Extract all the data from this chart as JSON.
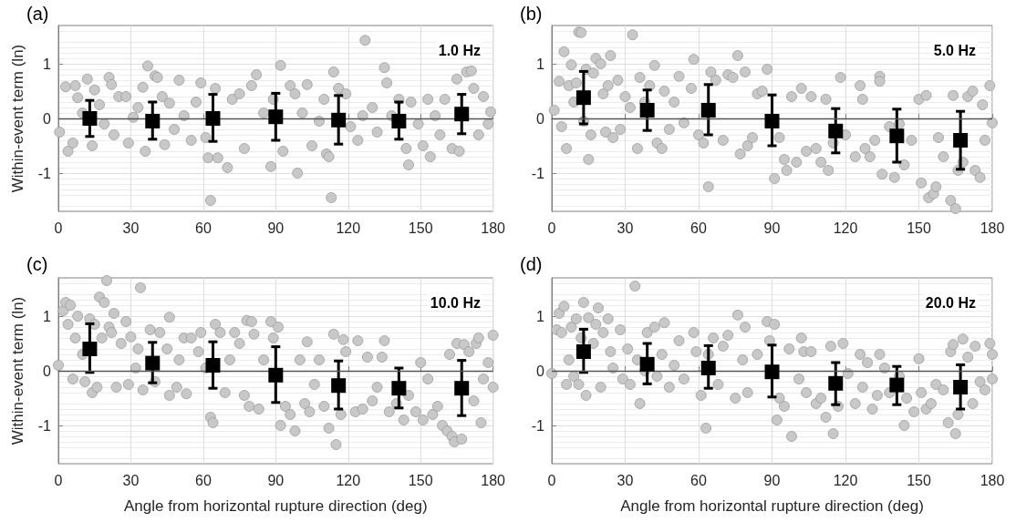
{
  "chart_data": [
    {
      "type": "scatter",
      "title": "(a)",
      "annotations": [
        "1.0 Hz"
      ],
      "ylabel": "Within-event term (ln)",
      "xlim": [
        0,
        180
      ],
      "xticks": [
        0,
        30,
        60,
        90,
        120,
        150,
        180
      ],
      "ylim": [
        -1.7,
        1.7
      ],
      "yticks": [
        -1,
        0,
        1
      ],
      "grid": true,
      "ref_lines": [
        {
          "axis": "y",
          "value": 0,
          "color": "#555555"
        }
      ],
      "series": [
        {
          "color": "#c8c8c8",
          "marker": "circle",
          "x": [
            0.5,
            3,
            4,
            6,
            7,
            8,
            10,
            12,
            14,
            15,
            17,
            19,
            21,
            22,
            23,
            25,
            28,
            29,
            31,
            33,
            35,
            36,
            37,
            40,
            41,
            43,
            44,
            46,
            48,
            50,
            52,
            55,
            57,
            59,
            61,
            62,
            63,
            65,
            66,
            70,
            72,
            75,
            77,
            80,
            82,
            85,
            88,
            89,
            92,
            93,
            96,
            98,
            99,
            101,
            103,
            105,
            108,
            110,
            111,
            112,
            113,
            114,
            116,
            119,
            121,
            124,
            126,
            127,
            130,
            132,
            135,
            136,
            138,
            141,
            144,
            145,
            146,
            149,
            151,
            153,
            154,
            156,
            158,
            160,
            163,
            165,
            166,
            169,
            171,
            172,
            174,
            176,
            178,
            179
          ],
          "values": [
            -0.25,
            0.58,
            -0.6,
            -0.45,
            0.6,
            0.38,
            0.1,
            0.72,
            -0.5,
            0.52,
            0.25,
            -0.1,
            0.75,
            0.62,
            -0.3,
            0.4,
            0.4,
            -0.45,
            0.02,
            0.2,
            0.57,
            -0.6,
            0.96,
            0.78,
            0.75,
            0.4,
            -0.48,
            0.28,
            -0.2,
            0.7,
            0.05,
            -0.4,
            0.3,
            0.65,
            -0.35,
            -0.72,
            -1.5,
            0.55,
            -0.72,
            -0.9,
            0.35,
            0.45,
            -0.55,
            0.6,
            0.8,
            0.1,
            -0.88,
            0.35,
            0.97,
            -0.6,
            0.6,
            0.45,
            -1.0,
            0.1,
            0.62,
            -0.5,
            -0.05,
            0.35,
            -0.65,
            -0.7,
            -1.45,
            0.85,
            0.55,
            0.45,
            -0.15,
            -0.4,
            0.05,
            1.43,
            0.2,
            -0.25,
            0.93,
            0.65,
            0.05,
            0.35,
            -0.55,
            -0.85,
            0.3,
            -0.1,
            -0.5,
            0.35,
            -0.7,
            0.05,
            -0.3,
            0.35,
            -0.55,
            0.72,
            -0.6,
            0.85,
            0.87,
            0.55,
            -0.3,
            0.4,
            -0.1,
            0.12
          ]
        },
        {
          "color": "#000000",
          "marker": "square",
          "x": [
            13,
            39,
            64,
            90,
            116,
            141,
            167
          ],
          "values": [
            0.0,
            -0.05,
            0.0,
            0.03,
            -0.03,
            -0.05,
            0.08
          ],
          "errors": [
            [
              -0.33,
              0.33
            ],
            [
              -0.38,
              0.3
            ],
            [
              -0.42,
              0.44
            ],
            [
              -0.4,
              0.46
            ],
            [
              -0.47,
              0.42
            ],
            [
              -0.38,
              0.3
            ],
            [
              -0.28,
              0.44
            ]
          ]
        }
      ]
    },
    {
      "type": "scatter",
      "title": "(b)",
      "annotations": [
        "5.0 Hz"
      ],
      "xlim": [
        0,
        180
      ],
      "xticks": [
        0,
        30,
        60,
        90,
        120,
        150,
        180
      ],
      "ylim": [
        -1.7,
        1.7
      ],
      "yticks": [
        -1,
        0,
        1
      ],
      "grid": true,
      "ref_lines": [
        {
          "axis": "y",
          "value": 0,
          "color": "#555555"
        }
      ],
      "series": [
        {
          "color": "#c8c8c8",
          "marker": "circle",
          "x": [
            1,
            3,
            4,
            5,
            6,
            7,
            8,
            9,
            10,
            11,
            12,
            13,
            14,
            15,
            16,
            17,
            18,
            20,
            21,
            22,
            23,
            24,
            25,
            27,
            28,
            30,
            32,
            33,
            35,
            36,
            38,
            40,
            42,
            43,
            45,
            46,
            48,
            50,
            52,
            54,
            57,
            58,
            60,
            62,
            64,
            65,
            67,
            70,
            72,
            74,
            76,
            77,
            79,
            80,
            82,
            84,
            86,
            88,
            91,
            93,
            95,
            96,
            98,
            100,
            102,
            104,
            106,
            108,
            110,
            112,
            113,
            115,
            118,
            120,
            124,
            126,
            127,
            128,
            130,
            132,
            134,
            134,
            135,
            138,
            140,
            142,
            144,
            147,
            150,
            151,
            153,
            154,
            156,
            157,
            158,
            160,
            163,
            164,
            165,
            166,
            168,
            170,
            172,
            173,
            175,
            176,
            177,
            179,
            180
          ],
          "values": [
            0.15,
            0.68,
            -0.15,
            1.22,
            -0.55,
            0.6,
            0.98,
            0.3,
            0.65,
            1.58,
            1.57,
            -0.05,
            0.9,
            -0.75,
            -0.3,
            0.83,
            1.1,
            1.0,
            0.45,
            -0.25,
            0.6,
            1.15,
            -0.35,
            0.7,
            -0.2,
            0.4,
            0.2,
            1.53,
            -0.55,
            0.75,
            0.3,
            0.6,
            0.97,
            -0.45,
            -0.55,
            0.5,
            -0.2,
            0.3,
            0.77,
            -0.08,
            0.55,
            1.08,
            -0.3,
            -0.45,
            -1.25,
            0.85,
            0.7,
            -0.4,
            0.8,
            0.75,
            1.15,
            -0.65,
            0.85,
            -0.5,
            -0.35,
            0.45,
            0.5,
            0.9,
            -1.1,
            -0.35,
            -0.75,
            -0.95,
            0.4,
            -0.8,
            0.55,
            -0.6,
            0.4,
            -0.55,
            -0.8,
            0.35,
            -0.95,
            -0.45,
            0.75,
            -0.3,
            -0.7,
            0.6,
            0.35,
            -0.55,
            -0.7,
            -0.4,
            0.77,
            0.68,
            -1.02,
            -0.15,
            -1.08,
            -0.1,
            -0.85,
            -0.4,
            0.35,
            -1.18,
            0.42,
            -1.45,
            -1.38,
            -1.25,
            -0.35,
            -0.7,
            -1.5,
            0.42,
            -1.65,
            -0.95,
            -0.8,
            0.4,
            0.5,
            -0.95,
            -1.08,
            0.25,
            -0.4,
            0.6,
            -0.08
          ]
        },
        {
          "color": "#000000",
          "marker": "square",
          "x": [
            13,
            39,
            64,
            90,
            116,
            141,
            167
          ],
          "values": [
            0.38,
            0.15,
            0.15,
            -0.05,
            -0.23,
            -0.32,
            -0.4
          ],
          "errors": [
            [
              -0.1,
              0.86
            ],
            [
              -0.22,
              0.52
            ],
            [
              -0.3,
              0.62
            ],
            [
              -0.5,
              0.43
            ],
            [
              -0.63,
              0.18
            ],
            [
              -0.8,
              0.17
            ],
            [
              -0.93,
              0.13
            ]
          ]
        }
      ]
    },
    {
      "type": "scatter",
      "title": "(c)",
      "annotations": [
        "10.0 Hz"
      ],
      "xlabel": "Angle from horizontal rupture direction (deg)",
      "ylabel": "Within-event term (ln)",
      "xlim": [
        0,
        180
      ],
      "xticks": [
        0,
        30,
        60,
        90,
        120,
        150,
        180
      ],
      "ylim": [
        -1.7,
        1.7
      ],
      "yticks": [
        -1,
        0,
        1
      ],
      "grid": true,
      "ref_lines": [
        {
          "axis": "y",
          "value": 0,
          "color": "#555555"
        }
      ],
      "series": [
        {
          "color": "#c8c8c8",
          "marker": "circle",
          "x": [
            0,
            2,
            3,
            4,
            5,
            6,
            7,
            8,
            10,
            11,
            13,
            14,
            15,
            16,
            17,
            18,
            19,
            20,
            21,
            22,
            23,
            24,
            26,
            28,
            29,
            30,
            32,
            33,
            34,
            35,
            38,
            40,
            42,
            45,
            46,
            46,
            49,
            50,
            52,
            53,
            55,
            58,
            59,
            61,
            63,
            64,
            65,
            67,
            69,
            71,
            73,
            75,
            77,
            78,
            79,
            80,
            81,
            83,
            85,
            88,
            89,
            91,
            92,
            94,
            96,
            98,
            100,
            102,
            103,
            104,
            106,
            108,
            110,
            112,
            114,
            115,
            117,
            118,
            119,
            123,
            124,
            126,
            128,
            130,
            132,
            134,
            135,
            137,
            140,
            143,
            145,
            148,
            150,
            151,
            153,
            155,
            157,
            159,
            161,
            162,
            163,
            164,
            165,
            167,
            168,
            170,
            172,
            173,
            174,
            175,
            176,
            178,
            180,
            180
          ],
          "values": [
            0.1,
            1.1,
            1.25,
            0.85,
            1.2,
            -0.15,
            0.6,
            1.0,
            0.3,
            -0.2,
            0.95,
            -0.4,
            0.85,
            -0.3,
            1.35,
            0.6,
            1.25,
            1.65,
            0.8,
            0.7,
            1.05,
            -0.3,
            0.5,
            0.9,
            -0.25,
            0.62,
            0.05,
            0.4,
            1.52,
            -0.35,
            0.75,
            -0.2,
            0.7,
            0.4,
            -0.45,
            0.98,
            -0.3,
            0.2,
            0.6,
            -0.42,
            0.6,
            0.35,
            0.7,
            0.05,
            -0.85,
            -0.95,
            0.85,
            0.7,
            -0.4,
            0.2,
            0.7,
            0.5,
            -0.45,
            0.92,
            -0.65,
            0.9,
            0.67,
            -0.7,
            0.2,
            0.9,
            0.6,
            0.8,
            -1.0,
            -0.65,
            -0.8,
            -1.1,
            0.2,
            -0.6,
            0.53,
            -0.75,
            -0.25,
            0.2,
            -0.65,
            -1.05,
            0.67,
            -1.35,
            -0.8,
            0.57,
            0.35,
            -0.75,
            0.55,
            -0.7,
            0.25,
            -0.55,
            -0.3,
            0.25,
            0.55,
            -0.75,
            -0.6,
            -0.9,
            -0.45,
            -0.75,
            0.15,
            -0.9,
            -0.15,
            -0.8,
            -0.65,
            -1.0,
            -1.1,
            0.3,
            -1.2,
            -1.3,
            0.5,
            -1.25,
            0.48,
            0.35,
            -0.55,
            0.5,
            0.6,
            -0.95,
            -0.15,
            0.15,
            0.65,
            -0.3
          ]
        },
        {
          "color": "#000000",
          "marker": "square",
          "x": [
            13,
            39,
            64,
            90,
            116,
            141,
            167
          ],
          "values": [
            0.4,
            0.14,
            0.1,
            -0.08,
            -0.27,
            -0.32,
            -0.32
          ],
          "errors": [
            [
              -0.03,
              0.86
            ],
            [
              -0.22,
              0.52
            ],
            [
              -0.32,
              0.53
            ],
            [
              -0.58,
              0.44
            ],
            [
              -0.7,
              0.18
            ],
            [
              -0.68,
              0.05
            ],
            [
              -0.82,
              0.19
            ]
          ]
        }
      ]
    },
    {
      "type": "scatter",
      "title": "(d)",
      "annotations": [
        "20.0 Hz"
      ],
      "xlabel": "Angle from horizontal rupture direction (deg)",
      "xlim": [
        0,
        180
      ],
      "xticks": [
        0,
        30,
        60,
        90,
        120,
        150,
        180
      ],
      "ylim": [
        -1.7,
        1.7
      ],
      "yticks": [
        -1,
        0,
        1
      ],
      "grid": true,
      "ref_lines": [
        {
          "axis": "y",
          "value": 0,
          "color": "#555555"
        }
      ],
      "series": [
        {
          "color": "#c8c8c8",
          "marker": "circle",
          "x": [
            0,
            2,
            3,
            4,
            5,
            6,
            7,
            8,
            9,
            10,
            11,
            12,
            13,
            14,
            15,
            17,
            18,
            19,
            20,
            21,
            23,
            24,
            25,
            28,
            29,
            31,
            32,
            34,
            35,
            36,
            38,
            39,
            42,
            43,
            45,
            46,
            48,
            50,
            52,
            54,
            58,
            59,
            61,
            63,
            64,
            66,
            68,
            70,
            72,
            75,
            76,
            78,
            79,
            80,
            84,
            88,
            89,
            91,
            92,
            93,
            95,
            97,
            98,
            101,
            102,
            103,
            104,
            106,
            108,
            110,
            112,
            114,
            115,
            117,
            119,
            121,
            124,
            126,
            127,
            129,
            131,
            133,
            134,
            136,
            138,
            142,
            144,
            145,
            148,
            150,
            151,
            153,
            155,
            157,
            160,
            162,
            163,
            164,
            165,
            166,
            168,
            170,
            172,
            173,
            175,
            177,
            179,
            180,
            180
          ],
          "values": [
            -0.05,
            0.75,
            1.05,
            0.7,
            1.18,
            -0.25,
            0.2,
            0.8,
            -0.1,
            0.95,
            -0.25,
            0.6,
            1.25,
            -0.45,
            0.97,
            0.5,
            0.85,
            1.15,
            -0.3,
            0.7,
            0.95,
            0.35,
            0.05,
            0.75,
            -0.15,
            0.4,
            -0.25,
            1.55,
            0.2,
            -0.6,
            0.0,
            0.7,
            0.8,
            -0.1,
            0.3,
            0.88,
            -0.3,
            0.1,
            0.55,
            -0.15,
            0.7,
            0.35,
            -0.45,
            -1.05,
            0.3,
            0.6,
            -0.25,
            0.45,
            0.65,
            -0.5,
            1.02,
            0.2,
            0.8,
            -0.4,
            0.3,
            0.9,
            0.55,
            0.85,
            -0.9,
            -0.5,
            -0.65,
            0.4,
            -1.2,
            -0.15,
            0.6,
            0.35,
            -0.4,
            0.35,
            -0.6,
            -0.5,
            -0.85,
            0.45,
            -1.15,
            -0.65,
            0.5,
            -0.05,
            -0.6,
            0.3,
            -0.3,
            0.15,
            -0.7,
            -0.45,
            0.3,
            0.05,
            -0.4,
            -0.1,
            -1.0,
            -0.5,
            -0.75,
            0.22,
            -0.4,
            -0.7,
            -0.6,
            -0.25,
            -0.35,
            -0.95,
            0.35,
            0.48,
            -1.15,
            -0.8,
            0.58,
            0.25,
            -0.6,
            0.45,
            -0.2,
            -0.35,
            0.5,
            0.3,
            -0.15
          ]
        },
        {
          "color": "#000000",
          "marker": "square",
          "x": [
            13,
            39,
            64,
            90,
            116,
            141,
            167
          ],
          "values": [
            0.35,
            0.12,
            0.05,
            -0.02,
            -0.23,
            -0.26,
            -0.3
          ],
          "errors": [
            [
              -0.03,
              0.76
            ],
            [
              -0.24,
              0.5
            ],
            [
              -0.32,
              0.46
            ],
            [
              -0.48,
              0.47
            ],
            [
              -0.62,
              0.15
            ],
            [
              -0.62,
              0.08
            ],
            [
              -0.7,
              0.11
            ]
          ]
        }
      ]
    }
  ]
}
